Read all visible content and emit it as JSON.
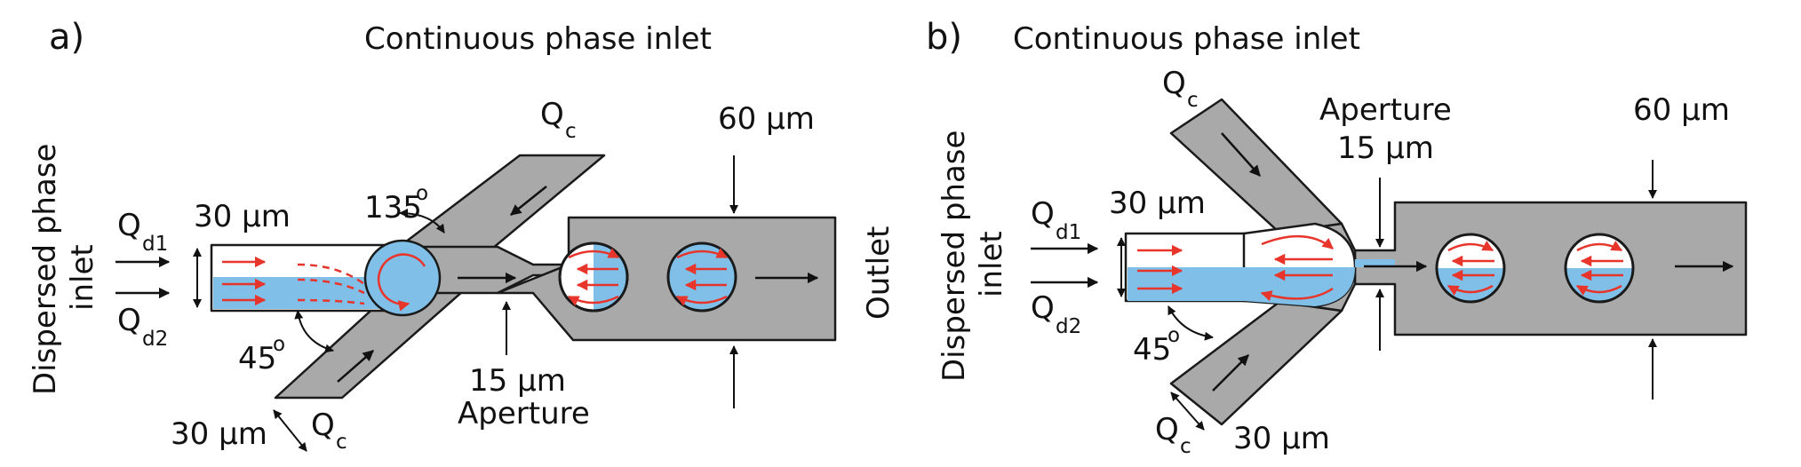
{
  "panel_a": {
    "label": "a)",
    "title": "Continuous phase inlet",
    "dispersed_inlet_line1": "Dispersed phase",
    "dispersed_inlet_line2": "inlet",
    "outlet": "Outlet",
    "width_30_top": "30 µm",
    "width_30_bottom": "30 µm",
    "width_60": "60 µm",
    "aperture_width": "15 µm",
    "aperture": "Aperture",
    "angle_135": "135",
    "angle_45": "45",
    "degree": "o",
    "q": "Q",
    "sub_d1": "d1",
    "sub_d2": "d2",
    "sub_c": "c"
  },
  "panel_b": {
    "label": "b)",
    "title": "Continuous phase inlet",
    "dispersed_inlet_line1": "Dispersed phase",
    "dispersed_inlet_line2": "inlet",
    "aperture": "Aperture",
    "aperture_width": "15 µm",
    "width_30_top": "30 µm",
    "width_30_bottom": "30 µm",
    "width_60": "60 µm",
    "angle_45": "45",
    "degree": "o",
    "q": "Q",
    "sub_d1": "d1",
    "sub_d2": "d2",
    "sub_c": "c"
  },
  "colors": {
    "channel": "#a9a9a9",
    "dispersed_phase": "#7fbfe8",
    "flow_arrow": "#e8352b",
    "outline": "#1a1a1a"
  }
}
